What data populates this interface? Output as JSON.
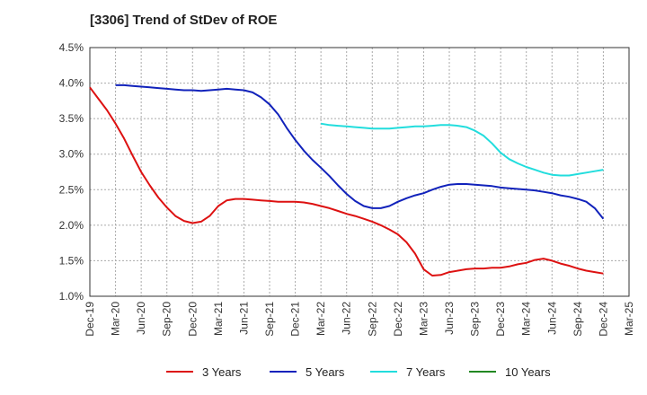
{
  "chart_data": {
    "type": "line",
    "title": "[3306]  Trend of StDev of ROE",
    "xlabel": "",
    "ylabel": "",
    "ylim": [
      1.0,
      4.5
    ],
    "yticks": [
      "1.0%",
      "1.5%",
      "2.0%",
      "2.5%",
      "3.0%",
      "3.5%",
      "4.0%",
      "4.5%"
    ],
    "x_labels": [
      "Dec-19",
      "Mar-20",
      "Jun-20",
      "Sep-20",
      "Dec-20",
      "Mar-21",
      "Jun-21",
      "Sep-21",
      "Dec-21",
      "Mar-22",
      "Jun-22",
      "Sep-22",
      "Dec-22",
      "Mar-23",
      "Jun-23",
      "Sep-23",
      "Dec-23",
      "Mar-24",
      "Jun-24",
      "Sep-24",
      "Dec-24",
      "Mar-25"
    ],
    "grid": true,
    "legend_position": "bottom",
    "series": [
      {
        "name": "3 Years",
        "color": "#dd1111",
        "points": [
          [
            "Dec-19",
            3.94
          ],
          [
            "Jan-20",
            3.78
          ],
          [
            "Feb-20",
            3.62
          ],
          [
            "Mar-20",
            3.43
          ],
          [
            "Apr-20",
            3.22
          ],
          [
            "May-20",
            2.98
          ],
          [
            "Jun-20",
            2.75
          ],
          [
            "Jul-20",
            2.56
          ],
          [
            "Aug-20",
            2.39
          ],
          [
            "Sep-20",
            2.25
          ],
          [
            "Oct-20",
            2.13
          ],
          [
            "Nov-20",
            2.06
          ],
          [
            "Dec-20",
            2.03
          ],
          [
            "Jan-21",
            2.05
          ],
          [
            "Feb-21",
            2.13
          ],
          [
            "Mar-21",
            2.27
          ],
          [
            "Apr-21",
            2.35
          ],
          [
            "May-21",
            2.37
          ],
          [
            "Jun-21",
            2.37
          ],
          [
            "Jul-21",
            2.36
          ],
          [
            "Aug-21",
            2.35
          ],
          [
            "Sep-21",
            2.34
          ],
          [
            "Oct-21",
            2.33
          ],
          [
            "Nov-21",
            2.33
          ],
          [
            "Dec-21",
            2.33
          ],
          [
            "Jan-22",
            2.32
          ],
          [
            "Feb-22",
            2.3
          ],
          [
            "Mar-22",
            2.27
          ],
          [
            "Apr-22",
            2.24
          ],
          [
            "May-22",
            2.2
          ],
          [
            "Jun-22",
            2.16
          ],
          [
            "Jul-22",
            2.13
          ],
          [
            "Aug-22",
            2.09
          ],
          [
            "Sep-22",
            2.05
          ],
          [
            "Oct-22",
            2.0
          ],
          [
            "Nov-22",
            1.94
          ],
          [
            "Dec-22",
            1.87
          ],
          [
            "Jan-23",
            1.76
          ],
          [
            "Feb-23",
            1.6
          ],
          [
            "Mar-23",
            1.38
          ],
          [
            "Apr-23",
            1.29
          ],
          [
            "May-23",
            1.3
          ],
          [
            "Jun-23",
            1.34
          ],
          [
            "Jul-23",
            1.36
          ],
          [
            "Aug-23",
            1.38
          ],
          [
            "Sep-23",
            1.39
          ],
          [
            "Oct-23",
            1.39
          ],
          [
            "Nov-23",
            1.4
          ],
          [
            "Dec-23",
            1.4
          ],
          [
            "Jan-24",
            1.42
          ],
          [
            "Feb-24",
            1.45
          ],
          [
            "Mar-24",
            1.47
          ],
          [
            "Apr-24",
            1.51
          ],
          [
            "May-24",
            1.53
          ],
          [
            "Jun-24",
            1.5
          ],
          [
            "Jul-24",
            1.46
          ],
          [
            "Aug-24",
            1.43
          ],
          [
            "Sep-24",
            1.39
          ],
          [
            "Oct-24",
            1.36
          ],
          [
            "Nov-24",
            1.34
          ],
          [
            "Dec-24",
            1.32
          ]
        ]
      },
      {
        "name": "5 Years",
        "color": "#1122bb",
        "points": [
          [
            "Mar-20",
            3.97
          ],
          [
            "Apr-20",
            3.97
          ],
          [
            "May-20",
            3.96
          ],
          [
            "Jun-20",
            3.95
          ],
          [
            "Jul-20",
            3.94
          ],
          [
            "Aug-20",
            3.93
          ],
          [
            "Sep-20",
            3.92
          ],
          [
            "Oct-20",
            3.91
          ],
          [
            "Nov-20",
            3.9
          ],
          [
            "Dec-20",
            3.9
          ],
          [
            "Jan-21",
            3.89
          ],
          [
            "Feb-21",
            3.9
          ],
          [
            "Mar-21",
            3.91
          ],
          [
            "Apr-21",
            3.92
          ],
          [
            "May-21",
            3.91
          ],
          [
            "Jun-21",
            3.9
          ],
          [
            "Jul-21",
            3.87
          ],
          [
            "Aug-21",
            3.8
          ],
          [
            "Sep-21",
            3.7
          ],
          [
            "Oct-21",
            3.56
          ],
          [
            "Nov-21",
            3.37
          ],
          [
            "Dec-21",
            3.2
          ],
          [
            "Jan-22",
            3.05
          ],
          [
            "Feb-22",
            2.92
          ],
          [
            "Mar-22",
            2.81
          ],
          [
            "Apr-22",
            2.69
          ],
          [
            "May-22",
            2.56
          ],
          [
            "Jun-22",
            2.44
          ],
          [
            "Jul-22",
            2.34
          ],
          [
            "Aug-22",
            2.27
          ],
          [
            "Sep-22",
            2.24
          ],
          [
            "Oct-22",
            2.24
          ],
          [
            "Nov-22",
            2.27
          ],
          [
            "Dec-22",
            2.33
          ],
          [
            "Jan-23",
            2.38
          ],
          [
            "Feb-23",
            2.42
          ],
          [
            "Mar-23",
            2.45
          ],
          [
            "Apr-23",
            2.5
          ],
          [
            "May-23",
            2.54
          ],
          [
            "Jun-23",
            2.57
          ],
          [
            "Jul-23",
            2.58
          ],
          [
            "Aug-23",
            2.58
          ],
          [
            "Sep-23",
            2.57
          ],
          [
            "Oct-23",
            2.56
          ],
          [
            "Nov-23",
            2.55
          ],
          [
            "Dec-23",
            2.53
          ],
          [
            "Jan-24",
            2.52
          ],
          [
            "Feb-24",
            2.51
          ],
          [
            "Mar-24",
            2.5
          ],
          [
            "Apr-24",
            2.49
          ],
          [
            "May-24",
            2.47
          ],
          [
            "Jun-24",
            2.45
          ],
          [
            "Jul-24",
            2.42
          ],
          [
            "Aug-24",
            2.4
          ],
          [
            "Sep-24",
            2.37
          ],
          [
            "Oct-24",
            2.33
          ],
          [
            "Nov-24",
            2.24
          ],
          [
            "Dec-24",
            2.09
          ]
        ]
      },
      {
        "name": "7 Years",
        "color": "#22dddd",
        "points": [
          [
            "Mar-22",
            3.43
          ],
          [
            "Apr-22",
            3.41
          ],
          [
            "May-22",
            3.4
          ],
          [
            "Jun-22",
            3.39
          ],
          [
            "Jul-22",
            3.38
          ],
          [
            "Aug-22",
            3.37
          ],
          [
            "Sep-22",
            3.36
          ],
          [
            "Oct-22",
            3.36
          ],
          [
            "Nov-22",
            3.36
          ],
          [
            "Dec-22",
            3.37
          ],
          [
            "Jan-23",
            3.38
          ],
          [
            "Feb-23",
            3.39
          ],
          [
            "Mar-23",
            3.39
          ],
          [
            "Apr-23",
            3.4
          ],
          [
            "May-23",
            3.41
          ],
          [
            "Jun-23",
            3.41
          ],
          [
            "Jul-23",
            3.4
          ],
          [
            "Aug-23",
            3.38
          ],
          [
            "Sep-23",
            3.33
          ],
          [
            "Oct-23",
            3.26
          ],
          [
            "Nov-23",
            3.15
          ],
          [
            "Dec-23",
            3.02
          ],
          [
            "Jan-24",
            2.93
          ],
          [
            "Feb-24",
            2.87
          ],
          [
            "Mar-24",
            2.82
          ],
          [
            "Apr-24",
            2.78
          ],
          [
            "May-24",
            2.74
          ],
          [
            "Jun-24",
            2.71
          ],
          [
            "Jul-24",
            2.7
          ],
          [
            "Aug-24",
            2.7
          ],
          [
            "Sep-24",
            2.72
          ],
          [
            "Oct-24",
            2.74
          ],
          [
            "Nov-24",
            2.76
          ],
          [
            "Dec-24",
            2.78
          ]
        ]
      },
      {
        "name": "10 Years",
        "color": "#228822",
        "points": []
      }
    ]
  }
}
